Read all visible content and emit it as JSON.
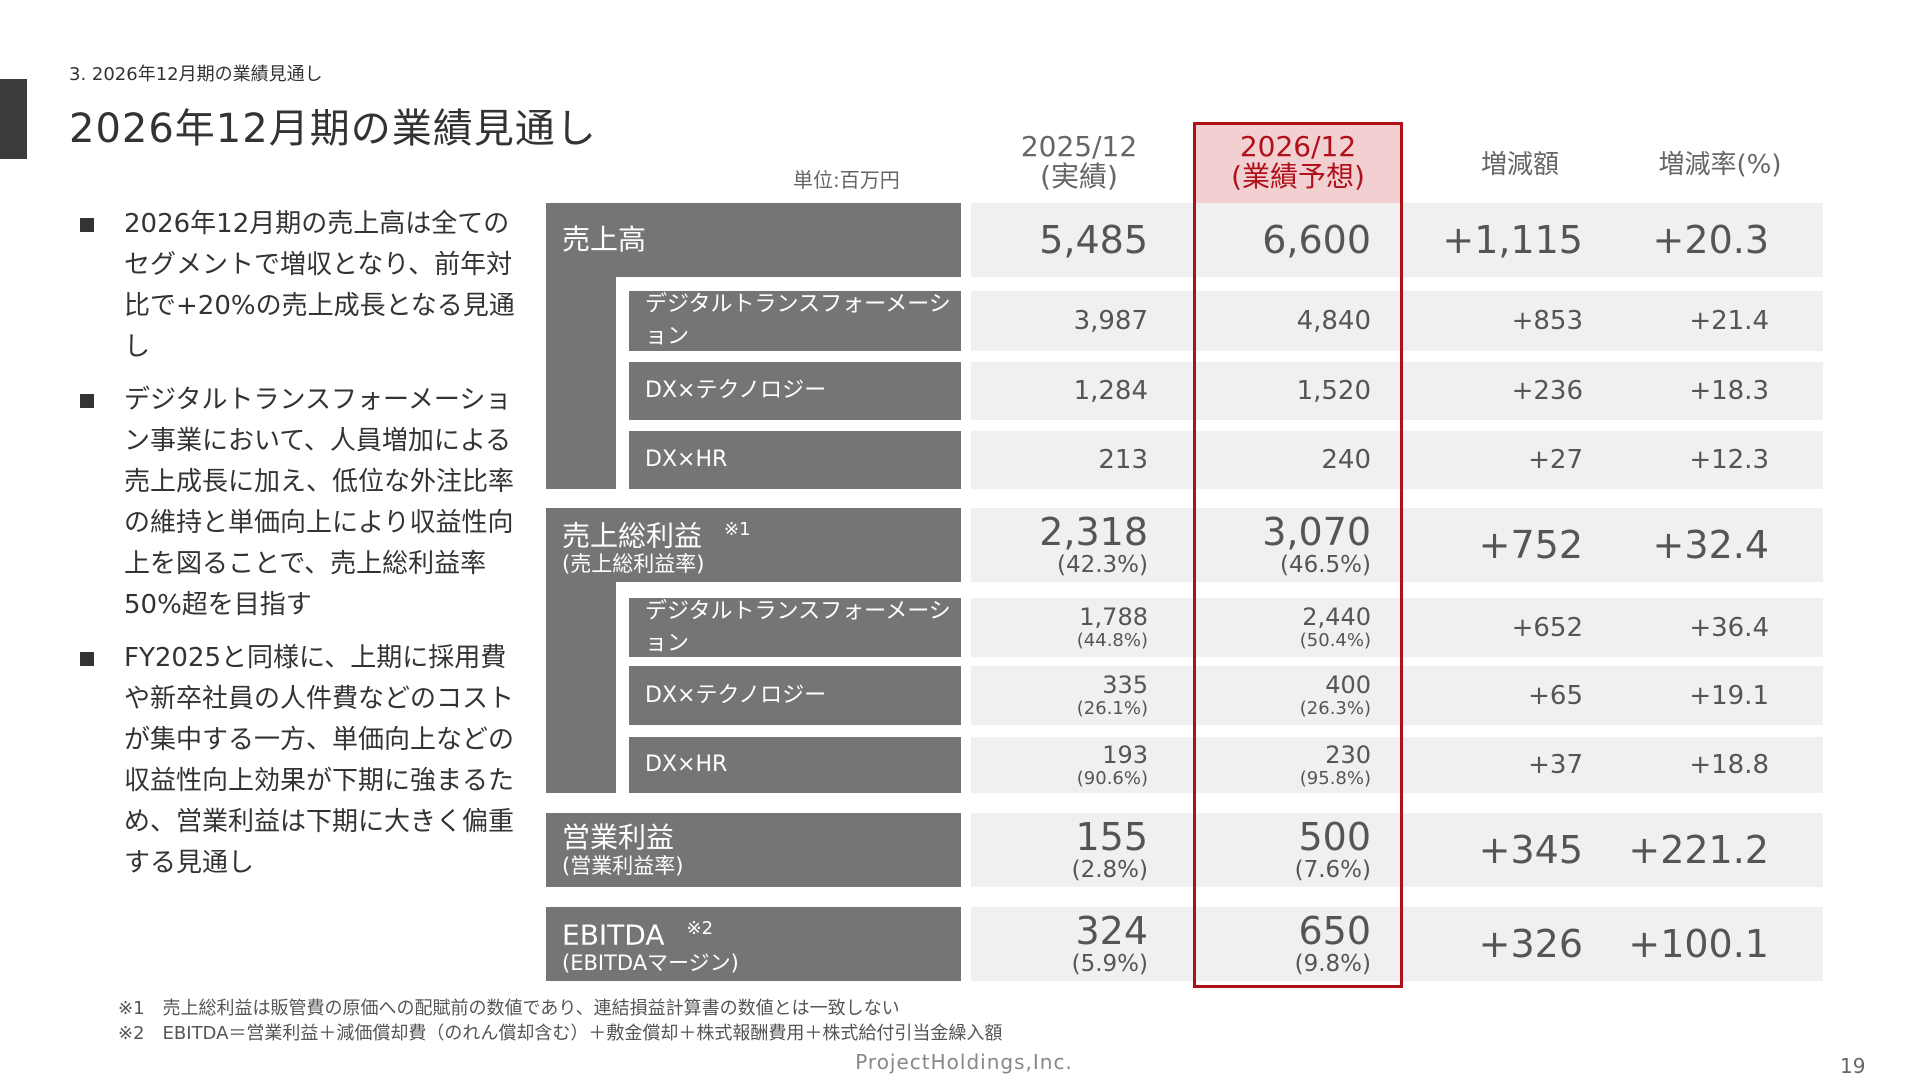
{
  "breadcrumb": "3. 2026年12月期の業績見通し",
  "title": "2026年12月期の業績見通し",
  "unit": "単位:百万円",
  "headers": {
    "prev_year": "2025/12",
    "prev_note": "(実績)",
    "forecast_year": "2026/12",
    "forecast_note": "(業績予想)",
    "change_amount": "増減額",
    "change_rate": "増減率(%)"
  },
  "colors": {
    "label_bg": "#757575",
    "cell_bg": "#f0f0f0",
    "highlight_border": "#b0101a",
    "highlight_header_bg": "#f2d0d2",
    "highlight_text": "#b0101a"
  },
  "bullets": [
    "2026年12月期の売上高は全てのセグメントで増収となり、前年対比で+20%の売上成長となる見通し",
    "デジタルトランスフォーメーション事業において、人員増加による売上成長に加え、低位な外注比率の維持と単価向上により収益性向上を図ることで、売上総利益率50%超を目指す",
    "FY2025と同様に、上期に採用費や新卒社員の人件費などのコストが集中する一方、単価向上などの収益性向上効果が下期に強まるため、営業利益は下期に大きく偏重する見通し"
  ],
  "rows": [
    {
      "label": "売上高",
      "sub": "",
      "note": "",
      "level": "main",
      "prev": "5,485",
      "prev_pct": "",
      "fc": "6,600",
      "fc_pct": "",
      "diff": "+1,115",
      "rate": "+20.3"
    },
    {
      "label": "デジタルトランスフォーメーション",
      "sub": "",
      "note": "",
      "level": "segment",
      "prev": "3,987",
      "prev_pct": "",
      "fc": "4,840",
      "fc_pct": "",
      "diff": "+853",
      "rate": "+21.4"
    },
    {
      "label": "DX×テクノロジー",
      "sub": "",
      "note": "",
      "level": "segment",
      "prev": "1,284",
      "prev_pct": "",
      "fc": "1,520",
      "fc_pct": "",
      "diff": "+236",
      "rate": "+18.3"
    },
    {
      "label": "DX×HR",
      "sub": "",
      "note": "",
      "level": "segment",
      "prev": "213",
      "prev_pct": "",
      "fc": "240",
      "fc_pct": "",
      "diff": "+27",
      "rate": "+12.3"
    },
    {
      "label": "売上総利益",
      "sub": "(売上総利益率)",
      "note": "※1",
      "level": "main",
      "prev": "2,318",
      "prev_pct": "(42.3%)",
      "fc": "3,070",
      "fc_pct": "(46.5%)",
      "diff": "+752",
      "rate": "+32.4"
    },
    {
      "label": "デジタルトランスフォーメーション",
      "sub": "",
      "note": "",
      "level": "segment",
      "prev": "1,788",
      "prev_pct": "(44.8%)",
      "fc": "2,440",
      "fc_pct": "(50.4%)",
      "diff": "+652",
      "rate": "+36.4"
    },
    {
      "label": "DX×テクノロジー",
      "sub": "",
      "note": "",
      "level": "segment",
      "prev": "335",
      "prev_pct": "(26.1%)",
      "fc": "400",
      "fc_pct": "(26.3%)",
      "diff": "+65",
      "rate": "+19.1"
    },
    {
      "label": "DX×HR",
      "sub": "",
      "note": "",
      "level": "segment",
      "prev": "193",
      "prev_pct": "(90.6%)",
      "fc": "230",
      "fc_pct": "(95.8%)",
      "diff": "+37",
      "rate": "+18.8"
    },
    {
      "label": "営業利益",
      "sub": "(営業利益率)",
      "note": "",
      "level": "main",
      "prev": "155",
      "prev_pct": "(2.8%)",
      "fc": "500",
      "fc_pct": "(7.6%)",
      "diff": "+345",
      "rate": "+221.2"
    },
    {
      "label": "EBITDA",
      "sub": "(EBITDAマージン)",
      "note": "※2",
      "level": "main",
      "prev": "324",
      "prev_pct": "(5.9%)",
      "fc": "650",
      "fc_pct": "(9.8%)",
      "diff": "+326",
      "rate": "+100.1"
    }
  ],
  "footnotes": [
    "※1　売上総利益は販管費の原価への配賦前の数値であり、連結損益計算書の数値とは一致しない",
    "※2　EBITDA＝営業利益＋減価償却費（のれん償却含む）＋敷金償却＋株式報酬費用＋株式給付引当金繰入額"
  ],
  "footer": "ProjectHoldings,Inc.",
  "page_number": "19"
}
